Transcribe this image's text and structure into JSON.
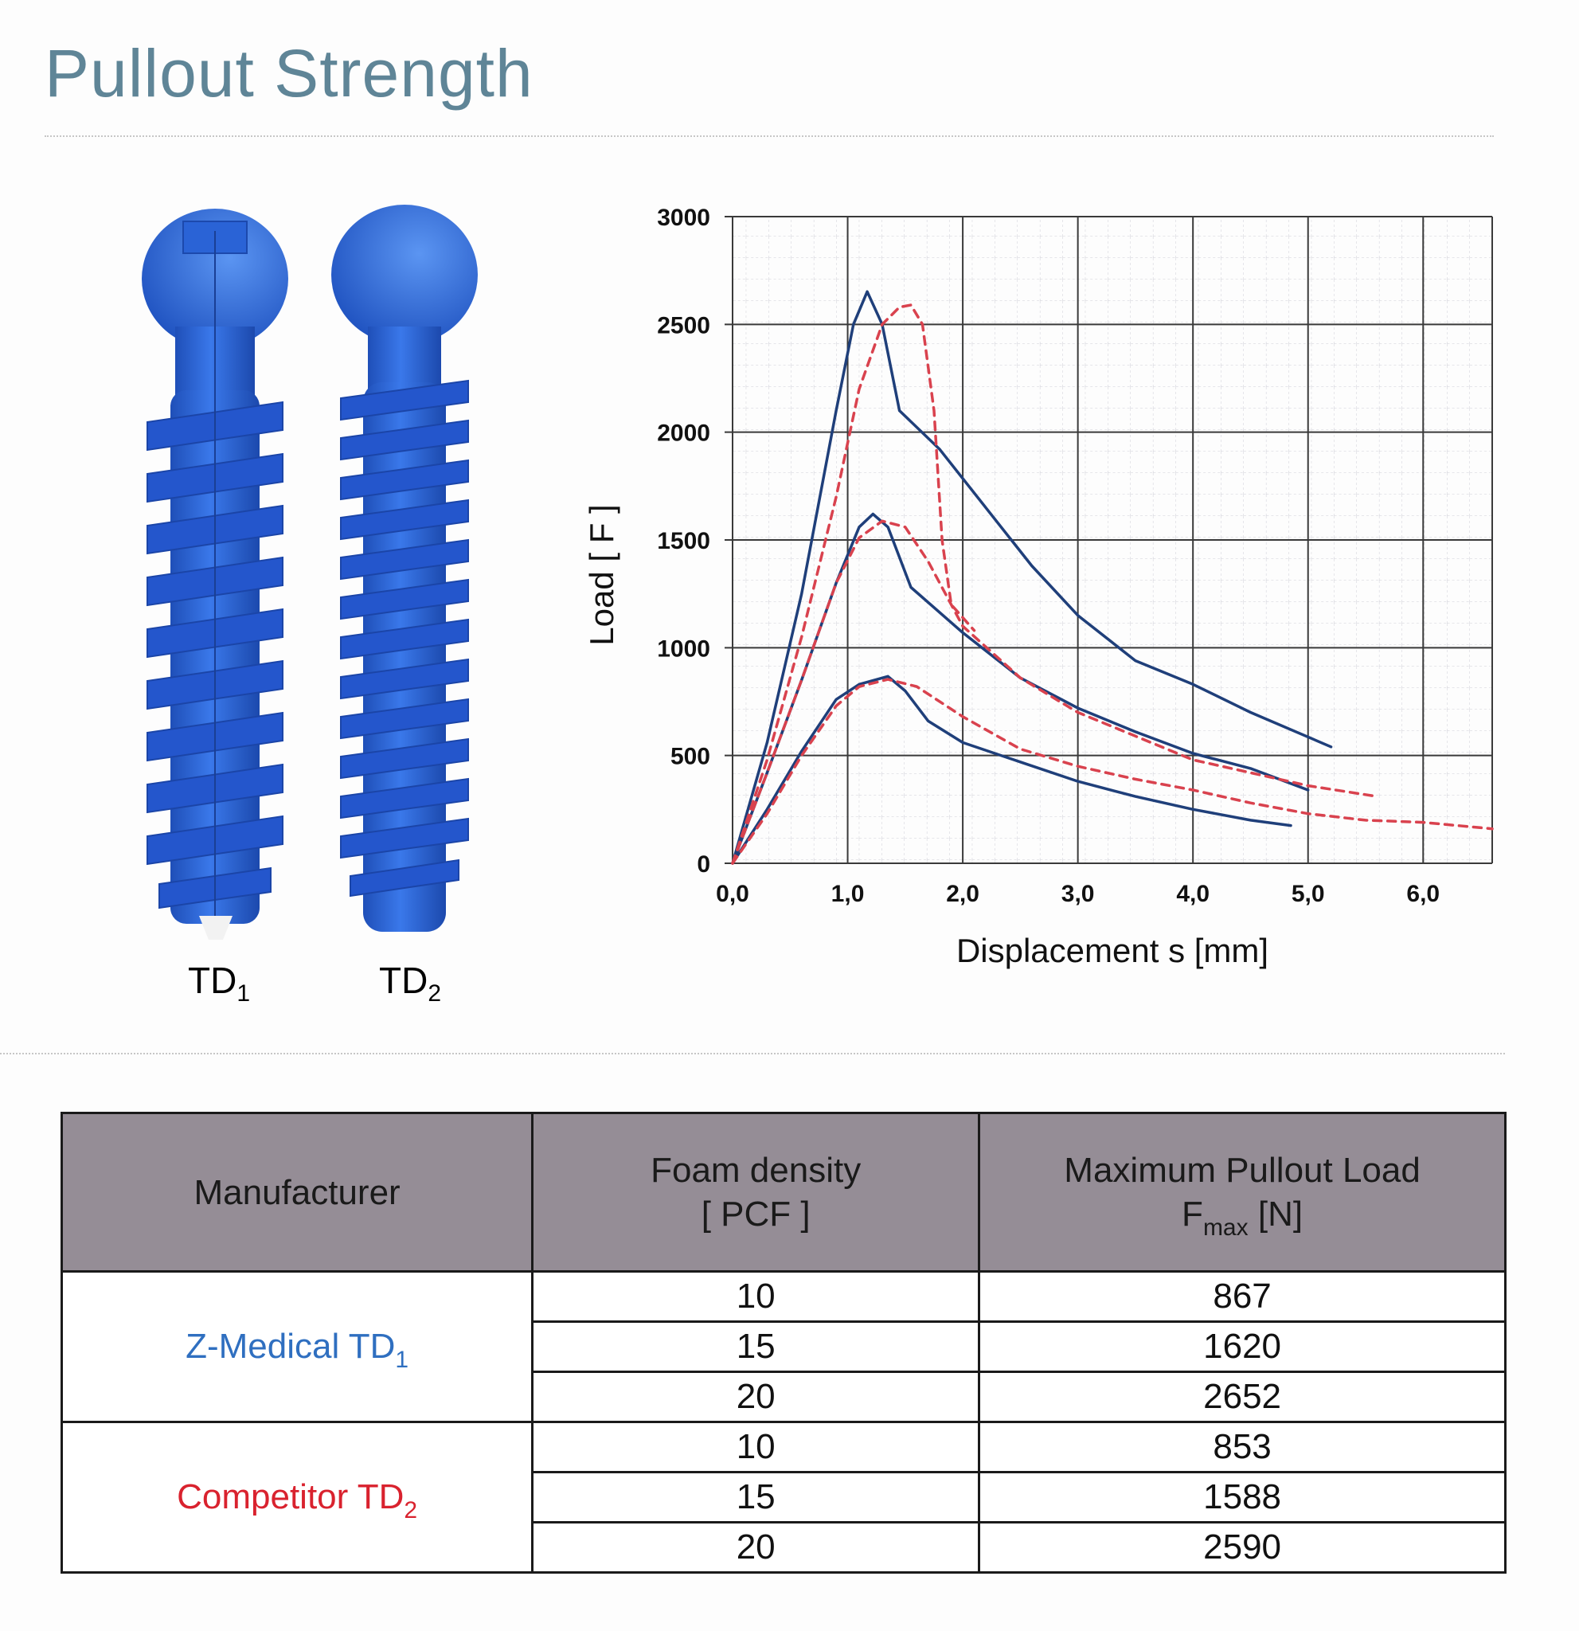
{
  "page": {
    "title": "Pullout Strength"
  },
  "screws": {
    "td1": {
      "base": "TD",
      "sub": "1",
      "color": "#2f6fc0"
    },
    "td2": {
      "base": "TD",
      "sub": "2",
      "color": "#d9222e"
    }
  },
  "colors": {
    "screw_blue": "#2a63d6",
    "td1_line": "#1f3f7a",
    "td2_line": "#d9424e",
    "table_header": "#958d96"
  },
  "chart_data": {
    "type": "line",
    "xlabel": "Displacement s [mm]",
    "ylabel": "Load [ F ]",
    "xlim": [
      0,
      6.6
    ],
    "ylim": [
      0,
      3000
    ],
    "x_ticks": [
      "0,0",
      "1,0",
      "2,0",
      "3,0",
      "4,0",
      "5,0",
      "6,0"
    ],
    "y_ticks": [
      "0",
      "500",
      "1000",
      "1500",
      "2000",
      "2500",
      "3000"
    ],
    "grid": true,
    "series": [
      {
        "group": "TD1",
        "style": "solid",
        "points": [
          [
            0,
            0
          ],
          [
            0.3,
            250
          ],
          [
            0.6,
            520
          ],
          [
            0.9,
            760
          ],
          [
            1.1,
            830
          ],
          [
            1.35,
            867
          ],
          [
            1.5,
            800
          ],
          [
            1.7,
            660
          ],
          [
            2.0,
            560
          ],
          [
            2.5,
            470
          ],
          [
            3.0,
            380
          ],
          [
            3.5,
            310
          ],
          [
            4.0,
            250
          ],
          [
            4.5,
            200
          ],
          [
            4.85,
            175
          ]
        ]
      },
      {
        "group": "TD1",
        "style": "solid",
        "points": [
          [
            0,
            0
          ],
          [
            0.3,
            420
          ],
          [
            0.6,
            850
          ],
          [
            0.9,
            1300
          ],
          [
            1.1,
            1560
          ],
          [
            1.22,
            1620
          ],
          [
            1.35,
            1560
          ],
          [
            1.55,
            1280
          ],
          [
            2.0,
            1070
          ],
          [
            2.5,
            860
          ],
          [
            3.0,
            720
          ],
          [
            3.5,
            610
          ],
          [
            4.0,
            510
          ],
          [
            4.5,
            440
          ],
          [
            5.0,
            340
          ]
        ]
      },
      {
        "group": "TD1",
        "style": "solid",
        "points": [
          [
            0,
            0
          ],
          [
            0.3,
            560
          ],
          [
            0.6,
            1250
          ],
          [
            0.9,
            2100
          ],
          [
            1.05,
            2500
          ],
          [
            1.17,
            2652
          ],
          [
            1.3,
            2500
          ],
          [
            1.45,
            2100
          ],
          [
            1.8,
            1920
          ],
          [
            2.2,
            1650
          ],
          [
            2.6,
            1380
          ],
          [
            3.0,
            1150
          ],
          [
            3.5,
            940
          ],
          [
            4.0,
            830
          ],
          [
            4.5,
            700
          ],
          [
            5.2,
            540
          ]
        ]
      },
      {
        "group": "TD2",
        "style": "dashed",
        "points": [
          [
            0,
            0
          ],
          [
            0.3,
            230
          ],
          [
            0.6,
            500
          ],
          [
            0.9,
            730
          ],
          [
            1.1,
            820
          ],
          [
            1.35,
            853
          ],
          [
            1.6,
            820
          ],
          [
            2.0,
            680
          ],
          [
            2.5,
            530
          ],
          [
            3.0,
            450
          ],
          [
            3.5,
            390
          ],
          [
            4.0,
            340
          ],
          [
            4.5,
            280
          ],
          [
            5.0,
            230
          ],
          [
            5.5,
            200
          ],
          [
            6.0,
            190
          ],
          [
            6.6,
            160
          ]
        ]
      },
      {
        "group": "TD2",
        "style": "dashed",
        "points": [
          [
            0,
            0
          ],
          [
            0.3,
            420
          ],
          [
            0.6,
            850
          ],
          [
            0.9,
            1300
          ],
          [
            1.1,
            1510
          ],
          [
            1.3,
            1588
          ],
          [
            1.5,
            1560
          ],
          [
            1.7,
            1400
          ],
          [
            2.0,
            1100
          ],
          [
            2.5,
            860
          ],
          [
            3.0,
            700
          ],
          [
            3.5,
            590
          ],
          [
            4.0,
            480
          ],
          [
            4.5,
            420
          ],
          [
            5.0,
            360
          ],
          [
            5.6,
            310
          ]
        ]
      },
      {
        "group": "TD2",
        "style": "dashed",
        "points": [
          [
            0,
            0
          ],
          [
            0.3,
            480
          ],
          [
            0.6,
            1050
          ],
          [
            0.9,
            1700
          ],
          [
            1.1,
            2200
          ],
          [
            1.3,
            2500
          ],
          [
            1.45,
            2580
          ],
          [
            1.55,
            2590
          ],
          [
            1.65,
            2500
          ],
          [
            1.75,
            2100
          ],
          [
            1.82,
            1500
          ],
          [
            1.9,
            1200
          ],
          [
            2.1,
            1080
          ]
        ]
      }
    ]
  },
  "table": {
    "headers": {
      "manufacturer": "Manufacturer",
      "density_line1": "Foam density",
      "density_line2": "[ PCF ]",
      "load_line1": "Maximum Pullout Load",
      "load_f": "F",
      "load_sub": "max",
      "load_unit": "[N]"
    },
    "groups": [
      {
        "name": "Z-Medical TD",
        "sub": "1",
        "color": "#2f6fc0",
        "rows": [
          {
            "density": "10",
            "load": "867"
          },
          {
            "density": "15",
            "load": "1620"
          },
          {
            "density": "20",
            "load": "2652"
          }
        ]
      },
      {
        "name": "Competitor TD",
        "sub": "2",
        "color": "#d9222e",
        "rows": [
          {
            "density": "10",
            "load": "853"
          },
          {
            "density": "15",
            "load": "1588"
          },
          {
            "density": "20",
            "load": "2590"
          }
        ]
      }
    ]
  }
}
